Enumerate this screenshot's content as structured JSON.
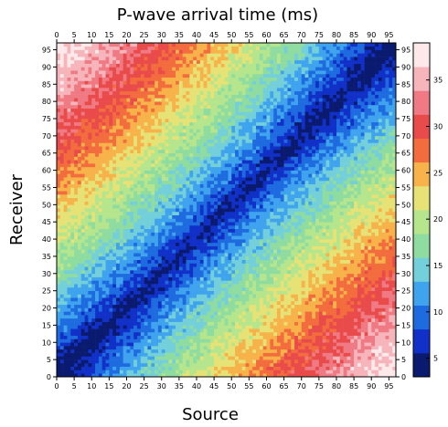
{
  "chart_data": {
    "type": "heatmap",
    "title": "P-wave arrival time (ms)",
    "xlabel": "Source",
    "ylabel": "Receiver",
    "x_range": [
      0,
      97
    ],
    "y_range": [
      0,
      97
    ],
    "x_ticks": [
      0,
      5,
      10,
      15,
      20,
      25,
      30,
      35,
      40,
      45,
      50,
      55,
      60,
      65,
      70,
      75,
      80,
      85,
      90,
      95
    ],
    "y_ticks": [
      0,
      5,
      10,
      15,
      20,
      25,
      30,
      35,
      40,
      45,
      50,
      55,
      60,
      65,
      70,
      75,
      80,
      85,
      90,
      95
    ],
    "colorbar": {
      "min": 3,
      "max": 39,
      "ticks": [
        5,
        10,
        15,
        20,
        25,
        30,
        35
      ],
      "palette": [
        "#0a1a6e",
        "#1030c8",
        "#1e6be0",
        "#3fa3ee",
        "#73cfd9",
        "#8fdca0",
        "#b5e58c",
        "#e6e275",
        "#f7b24a",
        "#f26c3e",
        "#e94a4a",
        "#f07a84",
        "#f6b5bb",
        "#fde8ea"
      ]
    },
    "pattern": "arrival time grows with |source - receiver|; minimum (~5 ms) along the diagonal; maxima (~35-38 ms) at top-left and bottom-right corners"
  }
}
